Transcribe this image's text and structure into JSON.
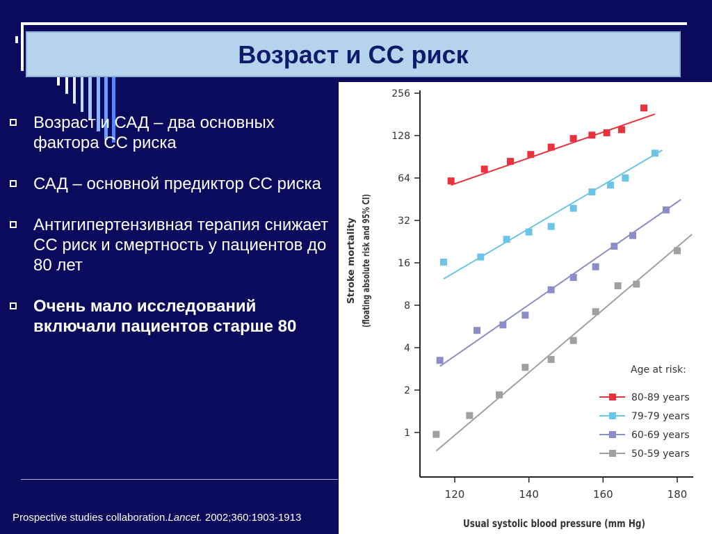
{
  "title": "Возраст и СС риск",
  "bullets": [
    "Возраст и САД – два основных фактора СС риска",
    "САД – основной предиктор СС риска",
    "Антигипертензивная терапия снижает СС риск и смертность у пациентов до 80 лет",
    "Очень мало исследований включали пациентов старше 80"
  ],
  "citation": {
    "prefix": "Prospective studies collaboration.",
    "journal": "Lancet.",
    "suffix": " 2002;360:1903-1913"
  },
  "colors": {
    "background": "#0b0b5e",
    "title_box": "#b5d3ec",
    "title_text": "#101a6b"
  },
  "chart_data": {
    "type": "scatter",
    "xlabel": "Usual systolic blood pressure (mm Hg)",
    "ylabel": "Stroke mortality",
    "ylabel2": "(floating absolute risk and 95% CI)",
    "xlim": [
      112,
      186
    ],
    "ylim": [
      0.5,
      256
    ],
    "yscale": "log2",
    "x_ticks": [
      120,
      140,
      160,
      180
    ],
    "y_ticks": [
      1,
      2,
      4,
      8,
      16,
      32,
      64,
      128,
      256
    ],
    "legend_title": "Age at risk:",
    "legend_position": "bottom-right",
    "series": [
      {
        "name": "80-89 years",
        "color": "#e8323c",
        "x": [
          119,
          128,
          135,
          140.5,
          146,
          152,
          157,
          161,
          165,
          171
        ],
        "y": [
          61,
          74,
          84,
          94,
          106,
          122,
          129,
          134,
          141,
          201
        ],
        "fit": [
          [
            119,
            57
          ],
          [
            174,
            182
          ]
        ]
      },
      {
        "name": "79-79 years",
        "color": "#6cc4e8",
        "x": [
          117,
          127,
          134,
          140,
          146,
          152,
          157,
          162,
          166,
          174
        ],
        "y": [
          16.2,
          17.6,
          23.5,
          26.5,
          29,
          39,
          51,
          57,
          64,
          96
        ],
        "fit": [
          [
            117,
            12.3
          ],
          [
            176,
            101
          ]
        ]
      },
      {
        "name": "60-69 years",
        "color": "#8c8cc8",
        "x": [
          116,
          126,
          133,
          139,
          146,
          152,
          158,
          163,
          168,
          177
        ],
        "y": [
          3.25,
          5.3,
          5.8,
          6.8,
          10.3,
          12.6,
          15,
          21,
          25,
          38
        ],
        "fit": [
          [
            116,
            2.95
          ],
          [
            181,
            45
          ]
        ]
      },
      {
        "name": "50-59 years",
        "color": "#a0a0a0",
        "x": [
          115,
          124,
          132,
          139,
          146,
          152,
          158,
          164,
          169,
          180
        ],
        "y": [
          0.97,
          1.32,
          1.85,
          2.9,
          3.3,
          4.5,
          7.2,
          11,
          11.3,
          19.5
        ],
        "fit": [
          [
            115,
            0.74
          ],
          [
            184,
            25.5
          ]
        ]
      }
    ]
  }
}
